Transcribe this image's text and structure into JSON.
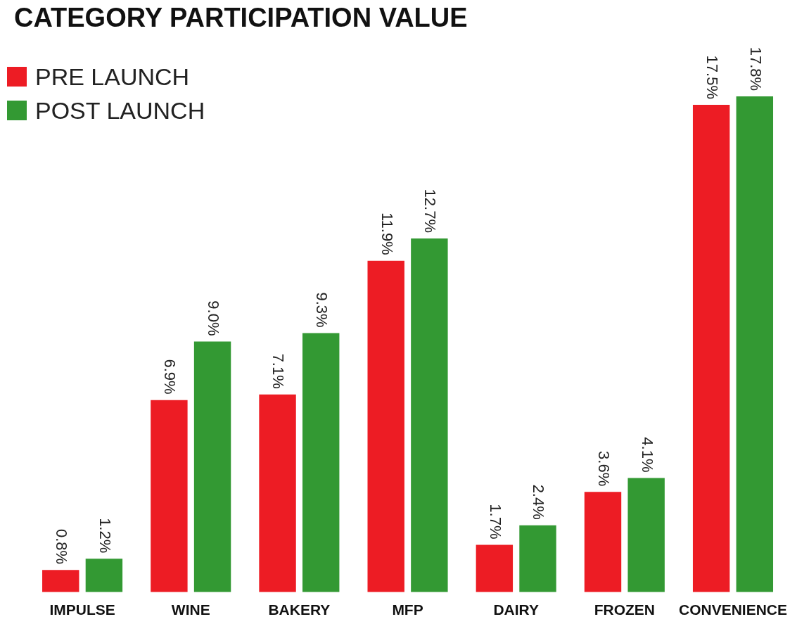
{
  "chart_data": {
    "type": "bar",
    "title": "CATEGORY PARTICIPATION VALUE",
    "categories": [
      "IMPULSE",
      "WINE",
      "BAKERY",
      "MFP",
      "DAIRY",
      "FROZEN",
      "CONVENIENCE"
    ],
    "series": [
      {
        "name": "PRE LAUNCH",
        "color": "#ed1c24",
        "values": [
          0.8,
          6.9,
          7.1,
          11.9,
          1.7,
          3.6,
          17.5
        ],
        "value_labels": [
          "0.8%",
          "6.9%",
          "7.1%",
          "11.9%",
          "1.7%",
          "3.6%",
          "17.5%"
        ]
      },
      {
        "name": "POST LAUNCH",
        "color": "#339933",
        "values": [
          1.2,
          9.0,
          9.3,
          12.7,
          2.4,
          4.1,
          17.8
        ],
        "value_labels": [
          "1.2%",
          "9.0%",
          "9.3%",
          "12.7%",
          "2.4%",
          "4.1%",
          "17.8%"
        ]
      }
    ],
    "tick_labels": "x",
    "legend": "top left"
  }
}
